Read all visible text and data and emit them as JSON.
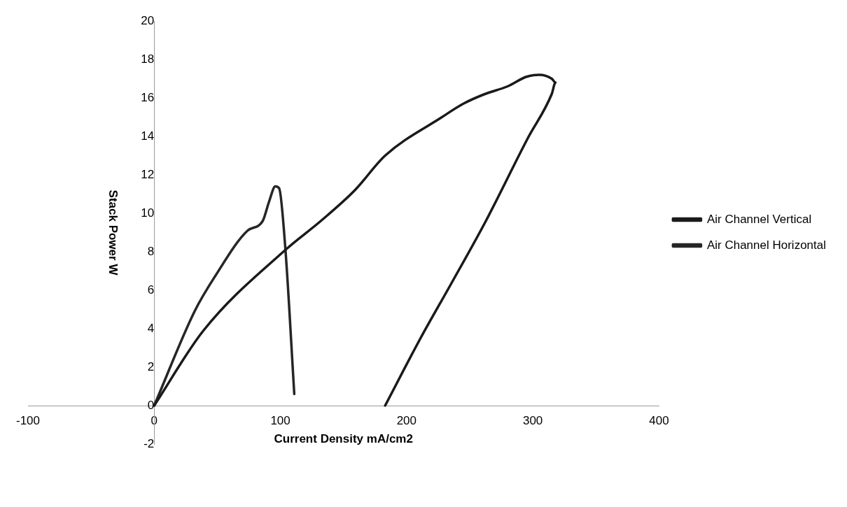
{
  "chart_data": {
    "type": "line",
    "xlabel": "Current Density mA/cm2",
    "ylabel": "Stack Power W",
    "xlim": [
      -100,
      400
    ],
    "xticks": [
      -100,
      0,
      100,
      200,
      300,
      400
    ],
    "ylim": [
      -2,
      20
    ],
    "yticks": [
      -2,
      0,
      2,
      4,
      6,
      8,
      10,
      12,
      14,
      16,
      18,
      20
    ],
    "grid": false,
    "legend": "right",
    "marker": "none",
    "line_style": "solid",
    "series": [
      {
        "name": "Air Channel Vertical",
        "color": "#1a1a1a",
        "x": [
          0,
          39,
          104,
          132,
          159,
          183,
          228,
          245,
          262,
          280,
          295,
          305,
          315,
          318,
          315,
          296,
          262,
          235,
          211,
          183
        ],
        "values": [
          0,
          3.9,
          8.1,
          9.6,
          11.2,
          13,
          15,
          15.7,
          16.2,
          16.6,
          17.1,
          17.2,
          17,
          16.8,
          16.2,
          13.9,
          9.5,
          6.3,
          3.5,
          0
        ]
      },
      {
        "name": "Air Channel Horizontal",
        "color": "#262626",
        "x": [
          0,
          32,
          48,
          74,
          86,
          91,
          96,
          99,
          104,
          111
        ],
        "values": [
          0,
          4.9,
          6.7,
          9.1,
          9.6,
          10.6,
          11.4,
          11.3,
          8.1,
          0.6
        ]
      }
    ]
  }
}
